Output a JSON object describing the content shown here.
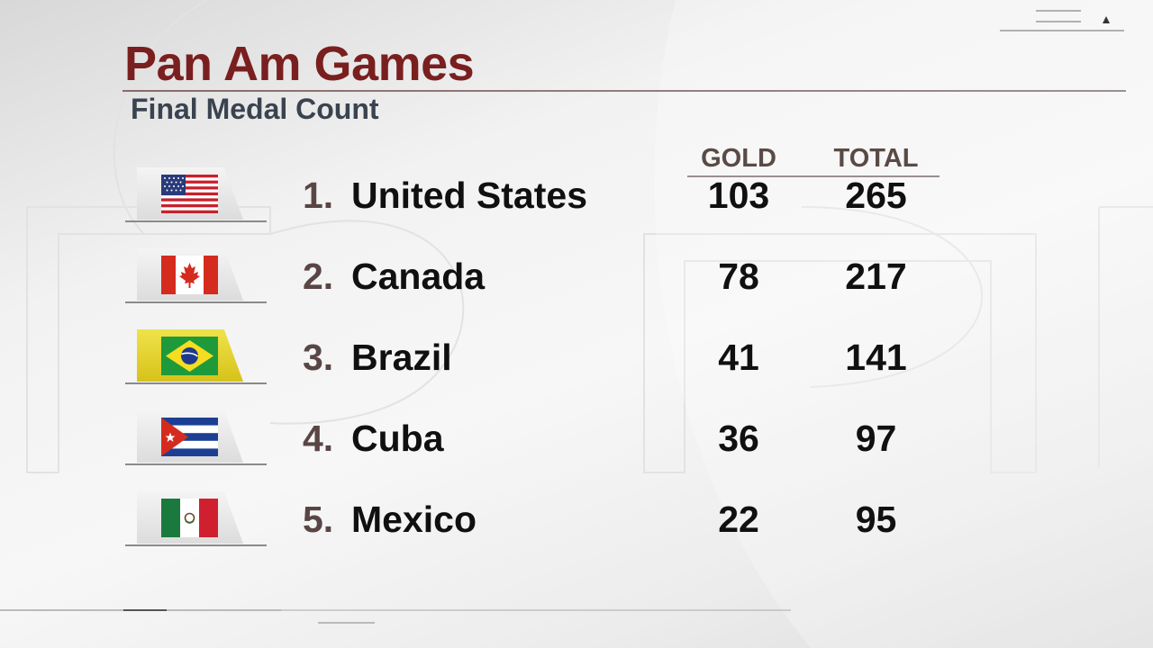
{
  "header": {
    "title": "Pan Am Games",
    "subtitle": "Final Medal Count"
  },
  "columns": {
    "gold": "GOLD",
    "total": "TOTAL"
  },
  "rows": [
    {
      "rank": "1.",
      "country": "United States",
      "gold": "103",
      "total": "265",
      "flag": "usa-flag-icon"
    },
    {
      "rank": "2.",
      "country": "Canada",
      "gold": "78",
      "total": "217",
      "flag": "canada-flag-icon"
    },
    {
      "rank": "3.",
      "country": "Brazil",
      "gold": "41",
      "total": "141",
      "flag": "brazil-flag-icon"
    },
    {
      "rank": "4.",
      "country": "Cuba",
      "gold": "36",
      "total": "97",
      "flag": "cuba-flag-icon"
    },
    {
      "rank": "5.",
      "country": "Mexico",
      "gold": "22",
      "total": "95",
      "flag": "mexico-flag-icon"
    }
  ],
  "colors": {
    "title": "#7a1f1f",
    "subtitle": "#3a4350",
    "rank": "#5a4545",
    "highlight_tab": "#f0e24a"
  }
}
